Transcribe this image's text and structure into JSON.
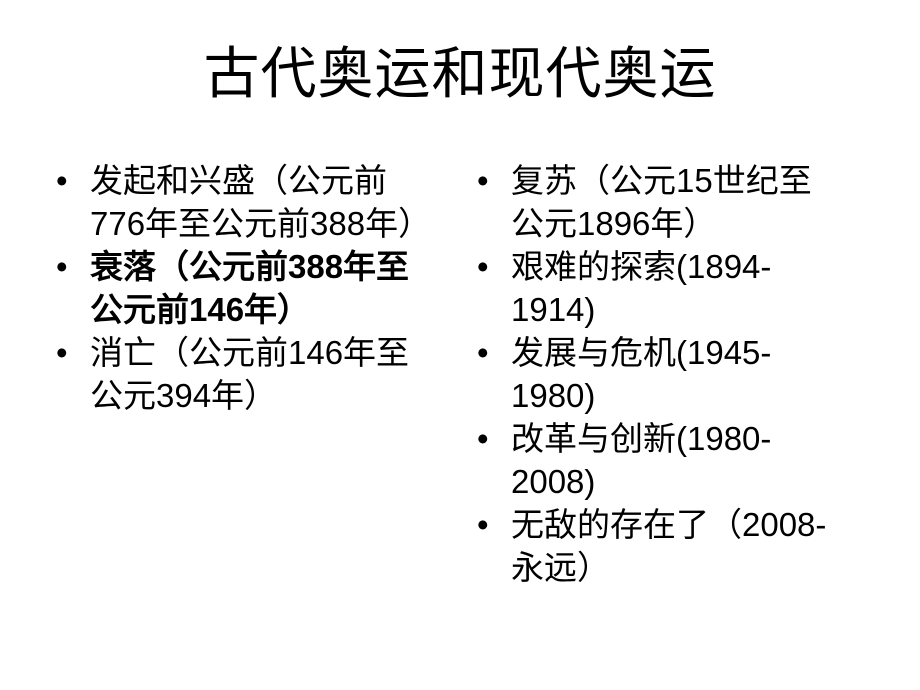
{
  "slide": {
    "title": "古代奥运和现代奥运",
    "bullet_glyph": "•",
    "colors": {
      "background": "#ffffff",
      "text": "#000000"
    },
    "left_column": {
      "items": [
        {
          "text": "发起和兴盛（公元前776年至公元前388年）",
          "bold": false
        },
        {
          "text": "衰落（公元前388年至公元前146年）",
          "bold": true
        },
        {
          "text": "消亡（公元前146年至公元394年）",
          "bold": false
        }
      ]
    },
    "right_column": {
      "items": [
        {
          "text": "复苏（公元15世纪至公元1896年）",
          "bold": false
        },
        {
          "text": "艰难的探索(1894-1914)",
          "bold": false
        },
        {
          "text": "发展与危机(1945-1980)",
          "bold": false
        },
        {
          "text": "改革与创新(1980-2008)",
          "bold": false
        },
        {
          "text": "无敌的存在了（2008-永远）",
          "bold": false
        }
      ]
    }
  }
}
